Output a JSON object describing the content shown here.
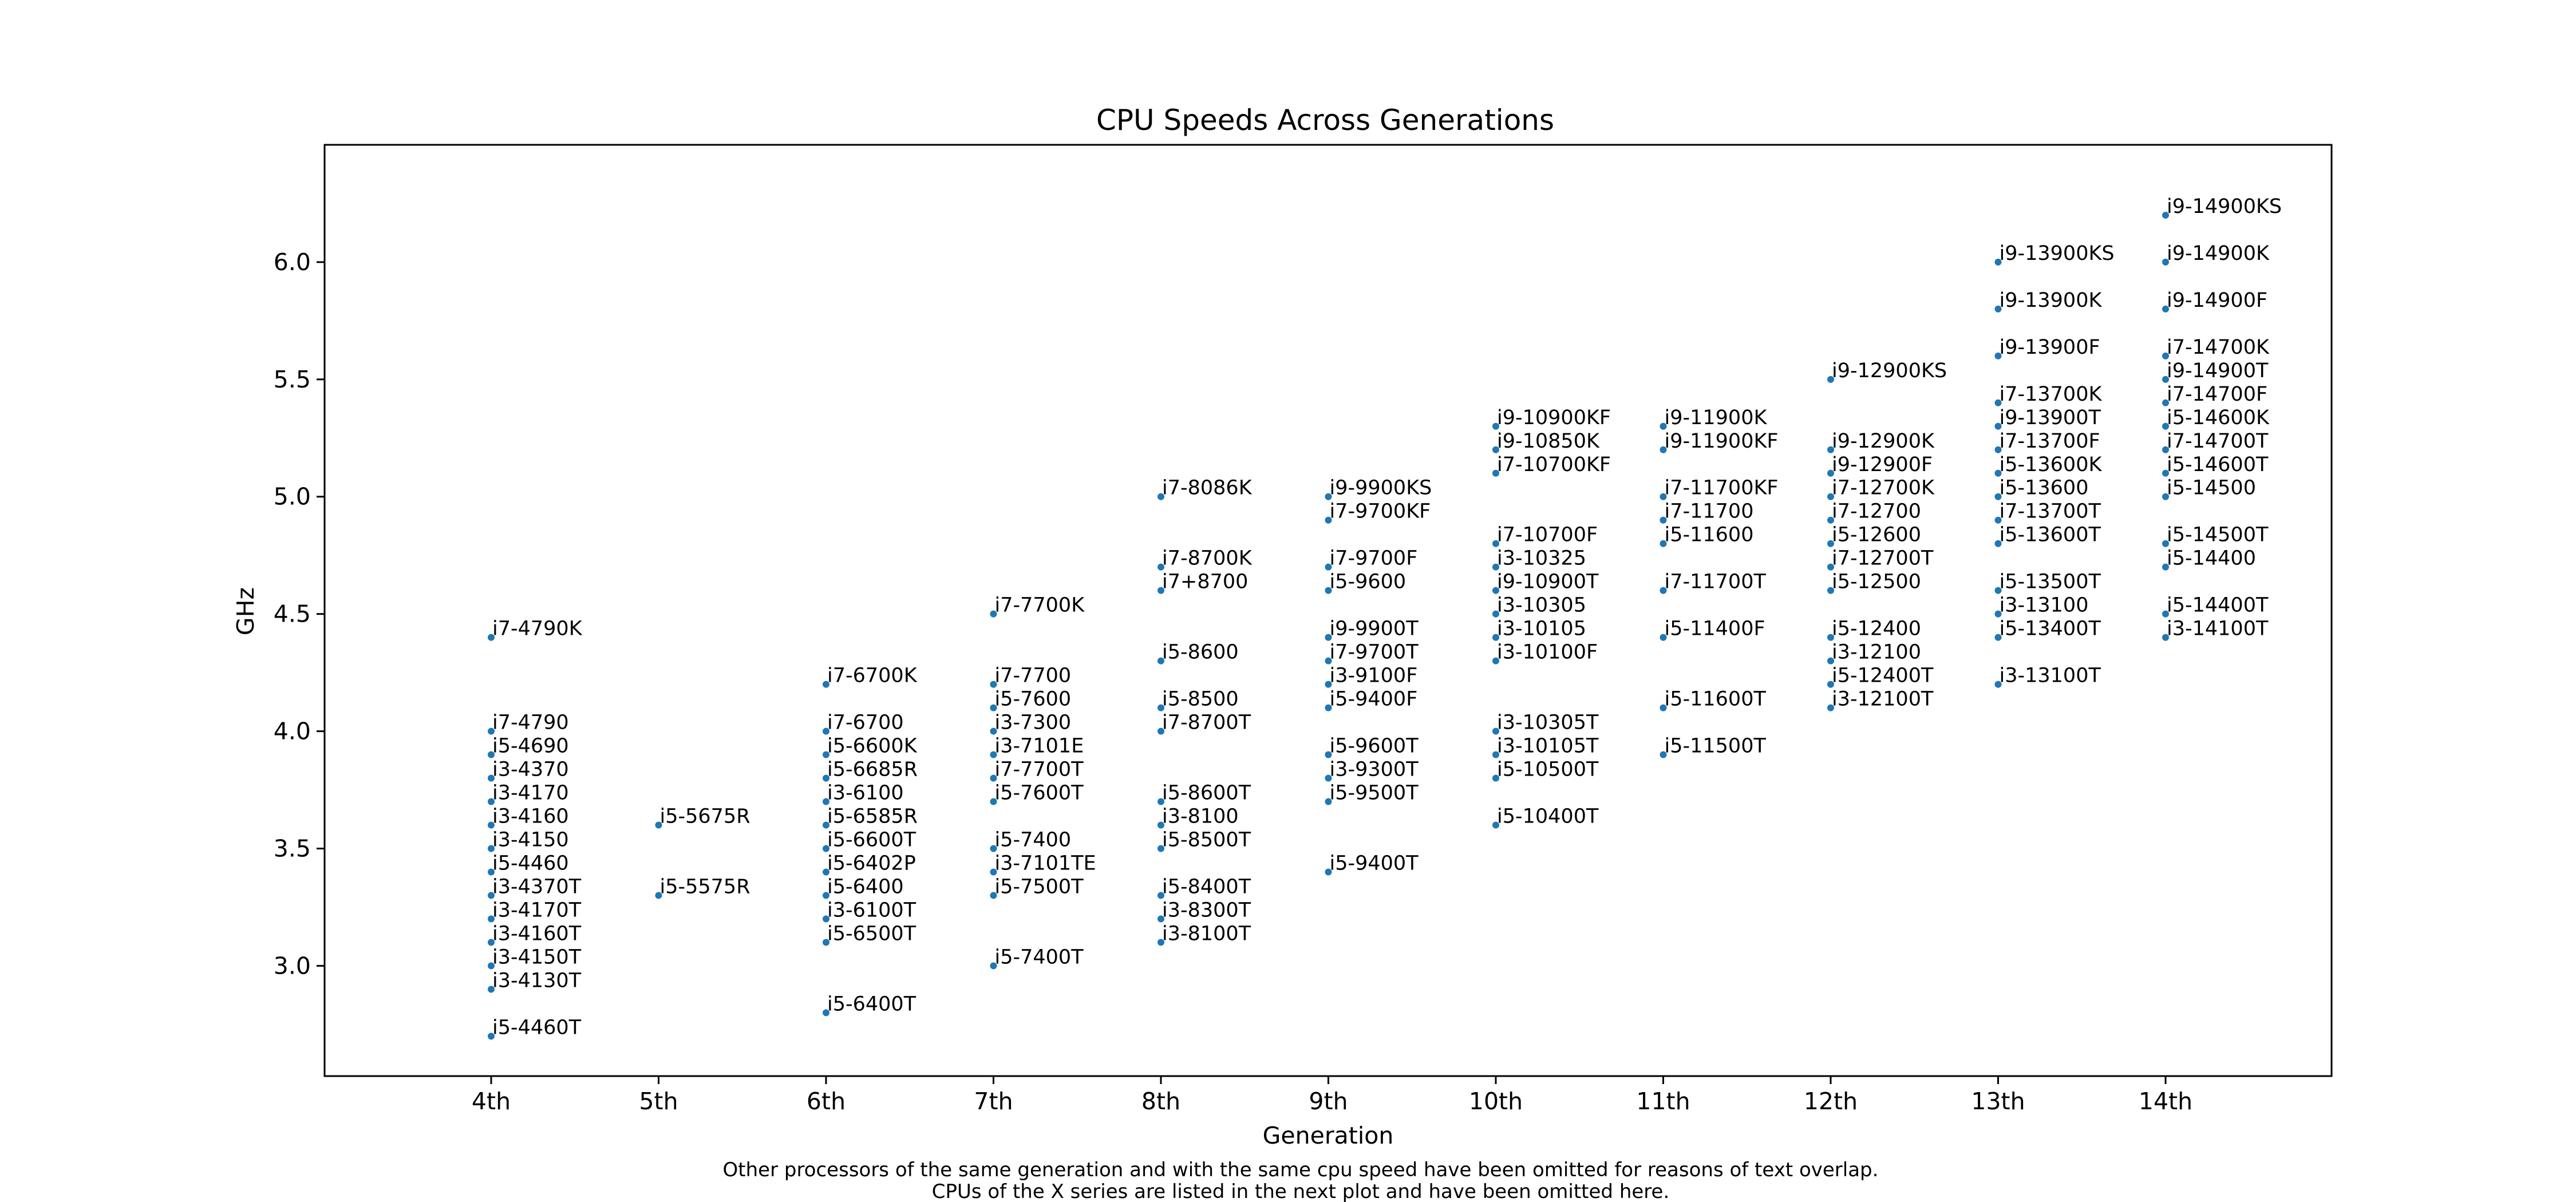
{
  "chart_data": {
    "type": "scatter",
    "title": "CPU Speeds Across Generations",
    "xlabel": "Generation",
    "ylabel": "GHz",
    "categories": [
      "4th",
      "5th",
      "6th",
      "7th",
      "8th",
      "9th",
      "10th",
      "11th",
      "12th",
      "13th",
      "14th"
    ],
    "yticks": [
      "3.0",
      "3.5",
      "4.0",
      "4.5",
      "5.0",
      "5.5",
      "6.0"
    ],
    "ylim": [
      2.53,
      6.5
    ],
    "grid": false,
    "point_color": "#1f77b4",
    "footnote": [
      "Other processors of the same generation and with the same cpu speed have been omitted for reasons of text overlap.",
      "CPUs of the X series are listed in the next plot and have been omitted here."
    ],
    "series": [
      {
        "generation": "4th",
        "points": [
          {
            "label": "i7-4790K",
            "ghz": 4.4
          },
          {
            "label": "i7-4790",
            "ghz": 4.0
          },
          {
            "label": "i5-4690",
            "ghz": 3.9
          },
          {
            "label": "i3-4370",
            "ghz": 3.8
          },
          {
            "label": "i3-4170",
            "ghz": 3.7
          },
          {
            "label": "i3-4160",
            "ghz": 3.6
          },
          {
            "label": "i3-4150",
            "ghz": 3.5
          },
          {
            "label": "i5-4460",
            "ghz": 3.4
          },
          {
            "label": "i3-4370T",
            "ghz": 3.3
          },
          {
            "label": "i3-4170T",
            "ghz": 3.2
          },
          {
            "label": "i3-4160T",
            "ghz": 3.1
          },
          {
            "label": "i3-4150T",
            "ghz": 3.0
          },
          {
            "label": "i3-4130T",
            "ghz": 2.9
          },
          {
            "label": "i5-4460T",
            "ghz": 2.7
          }
        ]
      },
      {
        "generation": "5th",
        "points": [
          {
            "label": "i5-5675R",
            "ghz": 3.6
          },
          {
            "label": "i5-5575R",
            "ghz": 3.3
          }
        ]
      },
      {
        "generation": "6th",
        "points": [
          {
            "label": "i7-6700K",
            "ghz": 4.2
          },
          {
            "label": "i7-6700",
            "ghz": 4.0
          },
          {
            "label": "i5-6600K",
            "ghz": 3.9
          },
          {
            "label": "i5-6685R",
            "ghz": 3.8
          },
          {
            "label": "i3-6100",
            "ghz": 3.7
          },
          {
            "label": "i5-6585R",
            "ghz": 3.6
          },
          {
            "label": "i5-6600T",
            "ghz": 3.5
          },
          {
            "label": "i5-6402P",
            "ghz": 3.4
          },
          {
            "label": "i5-6400",
            "ghz": 3.3
          },
          {
            "label": "i3-6100T",
            "ghz": 3.2
          },
          {
            "label": "i5-6500T",
            "ghz": 3.1
          },
          {
            "label": "i5-6400T",
            "ghz": 2.8
          }
        ]
      },
      {
        "generation": "7th",
        "points": [
          {
            "label": "i7-7700K",
            "ghz": 4.5
          },
          {
            "label": "i7-7700",
            "ghz": 4.2
          },
          {
            "label": "i5-7600",
            "ghz": 4.1
          },
          {
            "label": "i3-7300",
            "ghz": 4.0
          },
          {
            "label": "i3-7101E",
            "ghz": 3.9
          },
          {
            "label": "i7-7700T",
            "ghz": 3.8
          },
          {
            "label": "i5-7600T",
            "ghz": 3.7
          },
          {
            "label": "i5-7400",
            "ghz": 3.5
          },
          {
            "label": "i3-7101TE",
            "ghz": 3.4
          },
          {
            "label": "i5-7500T",
            "ghz": 3.3
          },
          {
            "label": "i5-7400T",
            "ghz": 3.0
          }
        ]
      },
      {
        "generation": "8th",
        "points": [
          {
            "label": "i7-8086K",
            "ghz": 5.0
          },
          {
            "label": "i7-8700K",
            "ghz": 4.7
          },
          {
            "label": "i7+8700",
            "ghz": 4.6
          },
          {
            "label": "i5-8600",
            "ghz": 4.3
          },
          {
            "label": "i5-8500",
            "ghz": 4.1
          },
          {
            "label": "i7-8700T",
            "ghz": 4.0
          },
          {
            "label": "i5-8600T",
            "ghz": 3.7
          },
          {
            "label": "i3-8100",
            "ghz": 3.6
          },
          {
            "label": "i5-8500T",
            "ghz": 3.5
          },
          {
            "label": "i5-8400T",
            "ghz": 3.3
          },
          {
            "label": "i3-8300T",
            "ghz": 3.2
          },
          {
            "label": "i3-8100T",
            "ghz": 3.1
          }
        ]
      },
      {
        "generation": "9th",
        "points": [
          {
            "label": "i9-9900KS",
            "ghz": 5.0
          },
          {
            "label": "i7-9700KF",
            "ghz": 4.9
          },
          {
            "label": "i7-9700F",
            "ghz": 4.7
          },
          {
            "label": "i5-9600",
            "ghz": 4.6
          },
          {
            "label": "i9-9900T",
            "ghz": 4.4
          },
          {
            "label": "i7-9700T",
            "ghz": 4.3
          },
          {
            "label": "i3-9100F",
            "ghz": 4.2
          },
          {
            "label": "i5-9400F",
            "ghz": 4.1
          },
          {
            "label": "i5-9600T",
            "ghz": 3.9
          },
          {
            "label": "i3-9300T",
            "ghz": 3.8
          },
          {
            "label": "i5-9500T",
            "ghz": 3.7
          },
          {
            "label": "i5-9400T",
            "ghz": 3.4
          }
        ]
      },
      {
        "generation": "10th",
        "points": [
          {
            "label": "i9-10900KF",
            "ghz": 5.3
          },
          {
            "label": "i9-10850K",
            "ghz": 5.2
          },
          {
            "label": "i7-10700KF",
            "ghz": 5.1
          },
          {
            "label": "i7-10700F",
            "ghz": 4.8
          },
          {
            "label": "i3-10325",
            "ghz": 4.7
          },
          {
            "label": "i9-10900T",
            "ghz": 4.6
          },
          {
            "label": "i3-10305",
            "ghz": 4.5
          },
          {
            "label": "i3-10105",
            "ghz": 4.4
          },
          {
            "label": "i3-10100F",
            "ghz": 4.3
          },
          {
            "label": "i3-10305T",
            "ghz": 4.0
          },
          {
            "label": "i3-10105T",
            "ghz": 3.9
          },
          {
            "label": "i5-10500T",
            "ghz": 3.8
          },
          {
            "label": "i5-10400T",
            "ghz": 3.6
          }
        ]
      },
      {
        "generation": "11th",
        "points": [
          {
            "label": "i9-11900K",
            "ghz": 5.3
          },
          {
            "label": "i9-11900KF",
            "ghz": 5.2
          },
          {
            "label": "i7-11700KF",
            "ghz": 5.0
          },
          {
            "label": "i7-11700",
            "ghz": 4.9
          },
          {
            "label": "i5-11600",
            "ghz": 4.8
          },
          {
            "label": "i7-11700T",
            "ghz": 4.6
          },
          {
            "label": "i5-11400F",
            "ghz": 4.4
          },
          {
            "label": "i5-11600T",
            "ghz": 4.1
          },
          {
            "label": "i5-11500T",
            "ghz": 3.9
          }
        ]
      },
      {
        "generation": "12th",
        "points": [
          {
            "label": "i9-12900KS",
            "ghz": 5.5
          },
          {
            "label": "i9-12900K",
            "ghz": 5.2
          },
          {
            "label": "i9-12900F",
            "ghz": 5.1
          },
          {
            "label": "i7-12700K",
            "ghz": 5.0
          },
          {
            "label": "i7-12700",
            "ghz": 4.9
          },
          {
            "label": "i5-12600",
            "ghz": 4.8
          },
          {
            "label": "i7-12700T",
            "ghz": 4.7
          },
          {
            "label": "i5-12500",
            "ghz": 4.6
          },
          {
            "label": "i5-12400",
            "ghz": 4.4
          },
          {
            "label": "i3-12100",
            "ghz": 4.3
          },
          {
            "label": "i5-12400T",
            "ghz": 4.2
          },
          {
            "label": "i3-12100T",
            "ghz": 4.1
          }
        ]
      },
      {
        "generation": "13th",
        "points": [
          {
            "label": "i9-13900KS",
            "ghz": 6.0
          },
          {
            "label": "i9-13900K",
            "ghz": 5.8
          },
          {
            "label": "i9-13900F",
            "ghz": 5.6
          },
          {
            "label": "i7-13700K",
            "ghz": 5.4
          },
          {
            "label": "i9-13900T",
            "ghz": 5.3
          },
          {
            "label": "i7-13700F",
            "ghz": 5.2
          },
          {
            "label": "i5-13600K",
            "ghz": 5.1
          },
          {
            "label": "i5-13600",
            "ghz": 5.0
          },
          {
            "label": "i7-13700T",
            "ghz": 4.9
          },
          {
            "label": "i5-13600T",
            "ghz": 4.8
          },
          {
            "label": "i5-13500T",
            "ghz": 4.6
          },
          {
            "label": "i3-13100",
            "ghz": 4.5
          },
          {
            "label": "i5-13400T",
            "ghz": 4.4
          },
          {
            "label": "i3-13100T",
            "ghz": 4.2
          }
        ]
      },
      {
        "generation": "14th",
        "points": [
          {
            "label": "i9-14900KS",
            "ghz": 6.2
          },
          {
            "label": "i9-14900K",
            "ghz": 6.0
          },
          {
            "label": "i9-14900F",
            "ghz": 5.8
          },
          {
            "label": "i7-14700K",
            "ghz": 5.6
          },
          {
            "label": "i9-14900T",
            "ghz": 5.5
          },
          {
            "label": "i7-14700F",
            "ghz": 5.4
          },
          {
            "label": "i5-14600K",
            "ghz": 5.3
          },
          {
            "label": "i7-14700T",
            "ghz": 5.2
          },
          {
            "label": "i5-14600T",
            "ghz": 5.1
          },
          {
            "label": "i5-14500",
            "ghz": 5.0
          },
          {
            "label": "i5-14500T",
            "ghz": 4.8
          },
          {
            "label": "i5-14400",
            "ghz": 4.7
          },
          {
            "label": "i5-14400T",
            "ghz": 4.5
          },
          {
            "label": "i3-14100T",
            "ghz": 4.4
          }
        ]
      }
    ]
  }
}
